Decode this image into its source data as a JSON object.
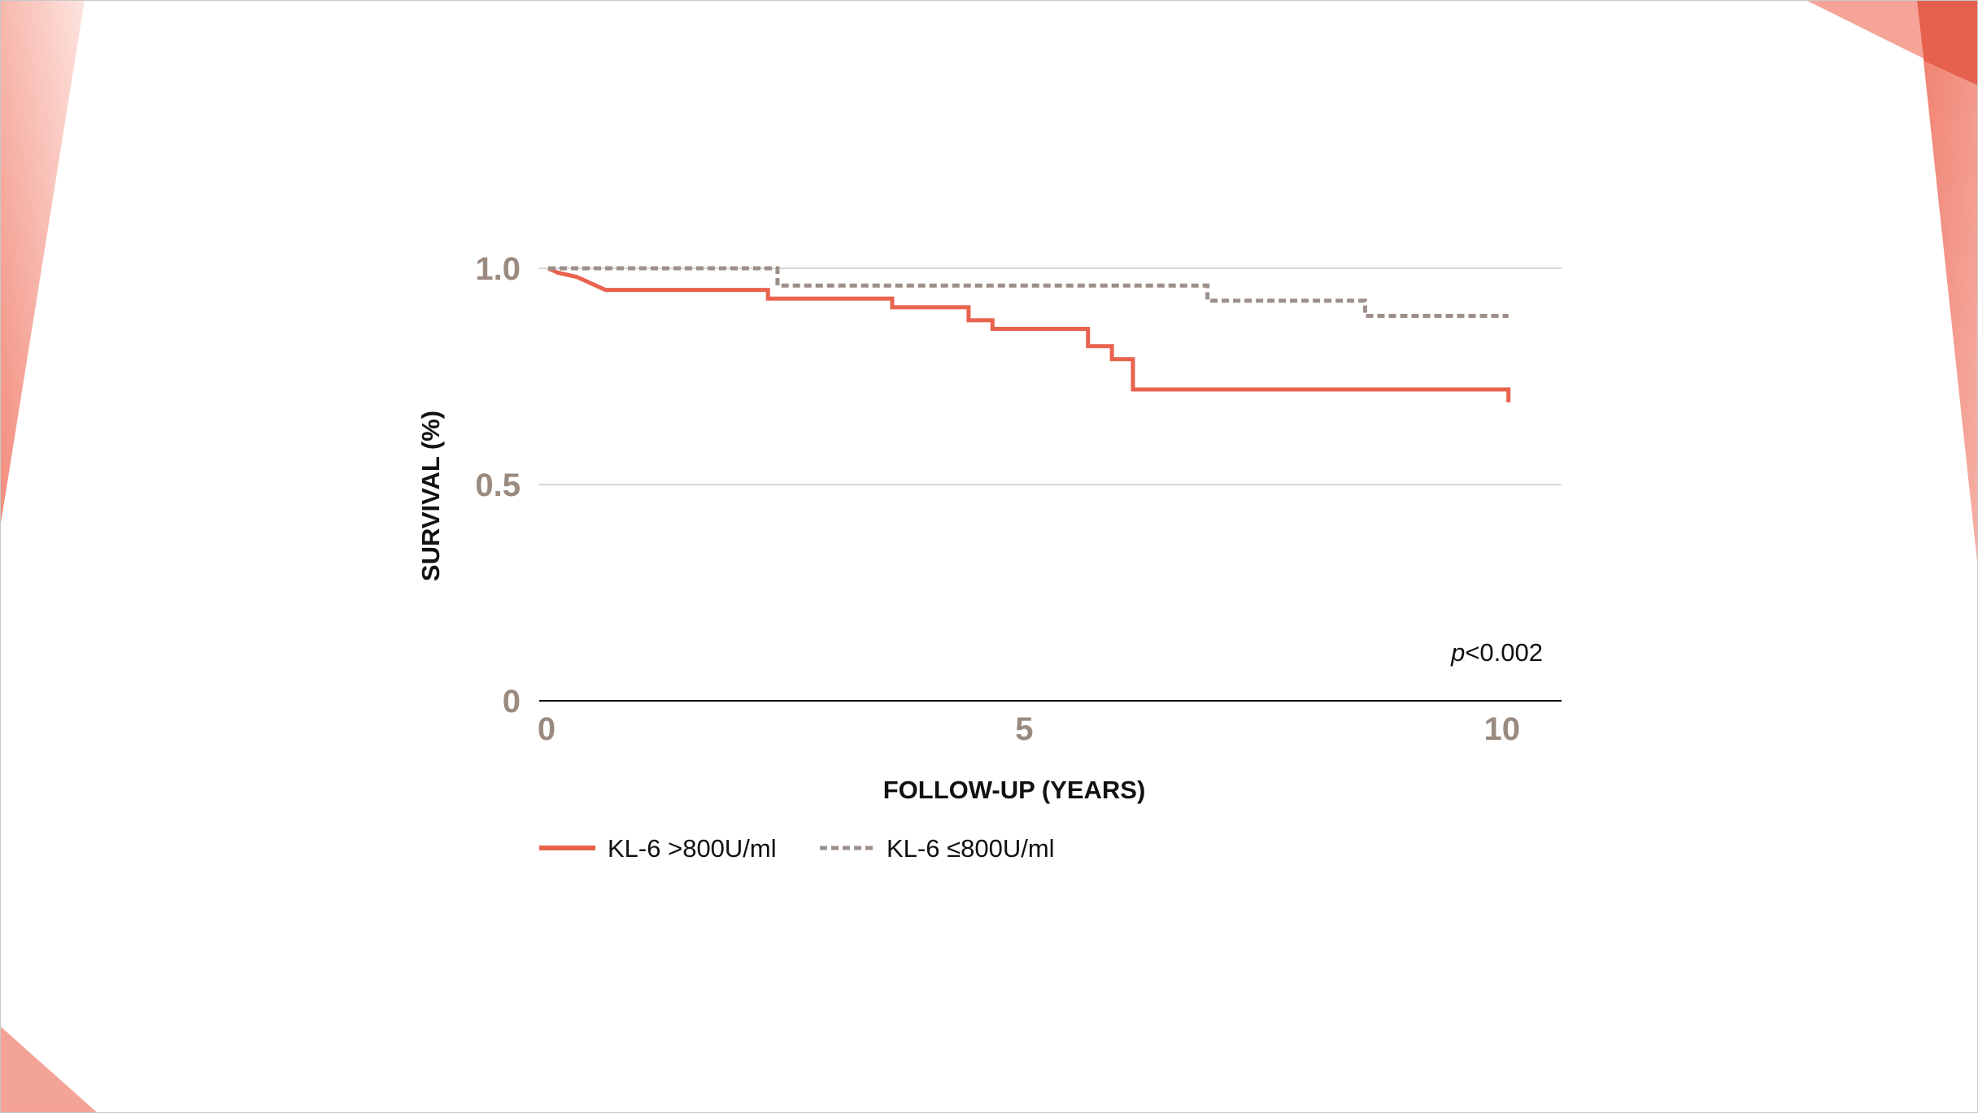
{
  "colors": {
    "accent": "#e8624d",
    "accent_light": "#f4a397",
    "dashed": "#9d8f89",
    "tick_text": "#9a8a80",
    "grid": "#c9c9c9",
    "axis": "#111111"
  },
  "chart_data": {
    "type": "line",
    "title": "",
    "xlabel": "FOLLOW-UP (YEARS)",
    "ylabel": "SURVIVAL (%)",
    "xlim": [
      0,
      10.7
    ],
    "ylim": [
      0,
      1.0
    ],
    "x_ticks": [
      0,
      5,
      10
    ],
    "x_tick_labels": [
      "0",
      "5",
      "10"
    ],
    "y_ticks": [
      0,
      0.5,
      1.0
    ],
    "y_tick_labels": [
      "0",
      "0.5",
      "1.0"
    ],
    "grid": true,
    "legend_position": "bottom-left",
    "annotation": {
      "italic_part": "p",
      "rest": "<0.002"
    },
    "series": [
      {
        "name": "KL-6 >800U/ml",
        "color": "#e8624d",
        "style": "solid",
        "x": [
          0,
          0.1,
          0.3,
          0.6,
          2.05,
          2.3,
          3.6,
          4.4,
          4.65,
          5.65,
          5.9,
          6.12,
          7.8,
          10.05
        ],
        "y": [
          1.0,
          0.99,
          0.98,
          0.95,
          0.95,
          0.93,
          0.91,
          0.88,
          0.86,
          0.82,
          0.79,
          0.72,
          0.72,
          0.69
        ]
      },
      {
        "name": "KL-6 ≤800U/ml",
        "color": "#9d8f89",
        "style": "dashed",
        "x": [
          0,
          2.4,
          6.9,
          8.55,
          10.05
        ],
        "y": [
          1.0,
          0.96,
          0.925,
          0.89,
          0.89
        ]
      }
    ]
  }
}
